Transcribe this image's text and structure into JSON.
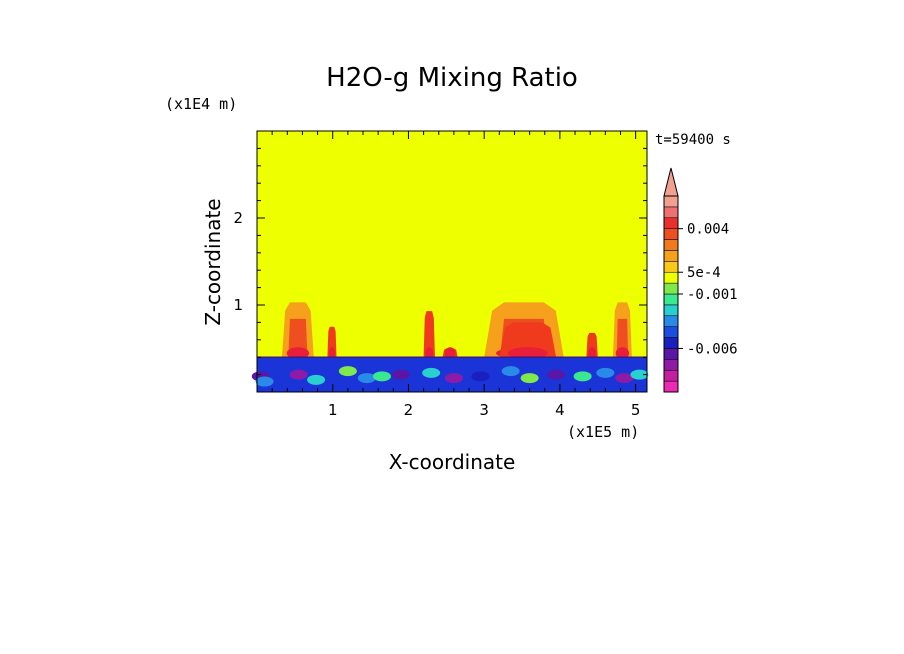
{
  "chart_data": {
    "type": "heatmap",
    "title": "H2O-g Mixing Ratio",
    "xlabel": "X-coordinate",
    "ylabel": "Z-coordinate",
    "x_unit_label": "(x1E5 m)",
    "y_unit_label": "(x1E4 m)",
    "time_label": "t=59400 s",
    "xlim": [
      0,
      5.15
    ],
    "ylim": [
      0,
      3.0
    ],
    "x_ticks": [
      1,
      2,
      3,
      4,
      5
    ],
    "x_tick_labels": [
      "1",
      "2",
      "3",
      "4",
      "5"
    ],
    "y_ticks": [
      1,
      2
    ],
    "y_tick_labels": [
      "1",
      "2"
    ],
    "background_color": "#eeff00",
    "boundary_layer_top": 0.4,
    "boundary_layer_color": "#1a34d8",
    "plumes": [
      {
        "x": [
          0.33,
          0.75
        ],
        "top": 1.03,
        "color": "#f5a11c"
      },
      {
        "x": [
          0.93,
          1.05
        ],
        "top": 0.75,
        "color": "#ef3a1e"
      },
      {
        "x": [
          2.2,
          2.35
        ],
        "top": 0.93,
        "color": "#ef3a1e"
      },
      {
        "x": [
          2.45,
          2.65
        ],
        "top": 0.5,
        "color": "#ef3a1e"
      },
      {
        "x": [
          3.0,
          4.05
        ],
        "top": 1.03,
        "color": "#f5a11c"
      },
      {
        "x": [
          3.2,
          3.95
        ],
        "top": 0.8,
        "color": "#ef3a1e"
      },
      {
        "x": [
          4.35,
          4.5
        ],
        "top": 0.68,
        "color": "#ef3a1e"
      },
      {
        "x": [
          4.7,
          4.95
        ],
        "top": 1.03,
        "color": "#f5a11c"
      }
    ],
    "colorbar": {
      "colors": [
        "#ee2ab4",
        "#c41fa0",
        "#8e1ba8",
        "#5a16a6",
        "#1a1fc0",
        "#1a4ee0",
        "#2a8ae8",
        "#2ad0d0",
        "#3ae890",
        "#7fe84a",
        "#eeff00",
        "#f8c81a",
        "#f5a11c",
        "#f07a20",
        "#ee4e20",
        "#e83030",
        "#f07070",
        "#f2a090"
      ],
      "tick_labels": [
        "0.004",
        "5e-4",
        "-0.001",
        "-0.006"
      ],
      "tick_band_index": [
        15,
        11,
        9,
        4
      ],
      "extend": "max"
    }
  }
}
